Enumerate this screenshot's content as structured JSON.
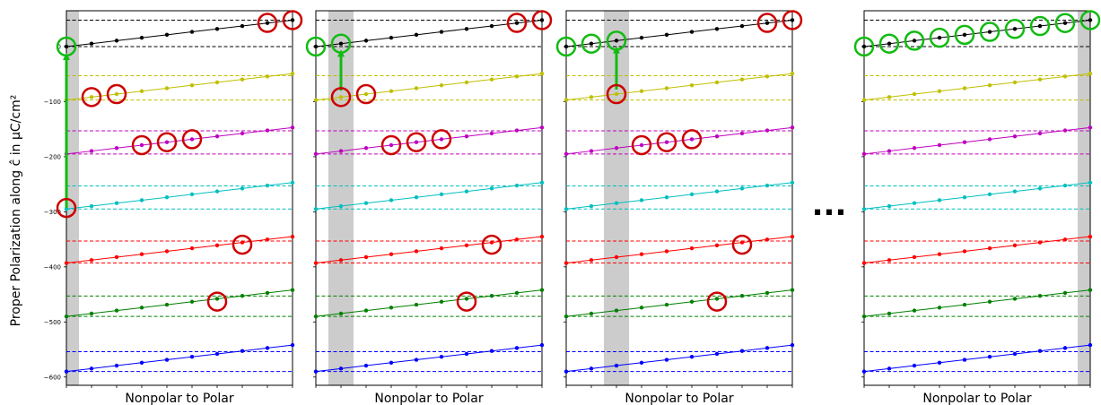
{
  "chart_data": {
    "type": "line",
    "ylabel": "Proper Polarization along ĉ in μC/cm²",
    "xlabel": "Nonpolar to Polar",
    "separator": "...",
    "ylim": [
      -615,
      65
    ],
    "yticks": [
      0,
      -100,
      -200,
      -300,
      -400,
      -500,
      -600
    ],
    "ytick_labels": [
      "0",
      "−100",
      "−200",
      "−300",
      "−400",
      "−500",
      "−600"
    ],
    "x": [
      0,
      1,
      2,
      3,
      4,
      5,
      6,
      7,
      8,
      9
    ],
    "colors": {
      "black": "#000000",
      "yellow": "#bfbf00",
      "magenta": "#bf00bf",
      "cyan": "#00bfbf",
      "red": "#ff0000",
      "green": "#008000",
      "blue": "#0000ff",
      "circle_red": "#cc0000",
      "circle_green": "#11bb11",
      "highlight": "#cccccc"
    },
    "series": [
      {
        "color": "black",
        "values": [
          0,
          5.3,
          10.7,
          16,
          21.3,
          26.7,
          32,
          37.3,
          42.7,
          48
        ],
        "dashes": [
          0,
          48
        ]
      },
      {
        "color": "yellow",
        "values": [
          -97,
          -91.7,
          -86.3,
          -81,
          -75.7,
          -70.3,
          -65,
          -59.7,
          -54.3,
          -49
        ],
        "dashes": [
          -97,
          -53
        ]
      },
      {
        "color": "magenta",
        "values": [
          -195,
          -189.7,
          -184.3,
          -179,
          -173.7,
          -168.3,
          -163,
          -157.7,
          -152.3,
          -147
        ],
        "dashes": [
          -195,
          -153
        ]
      },
      {
        "color": "cyan",
        "values": [
          -295,
          -289.7,
          -284.3,
          -279,
          -273.7,
          -268.3,
          -263,
          -257.7,
          -252.3,
          -247
        ],
        "dashes": [
          -295,
          -253
        ]
      },
      {
        "color": "red",
        "values": [
          -393,
          -387.7,
          -382.3,
          -377,
          -371.7,
          -366.3,
          -361,
          -355.7,
          -350.3,
          -345
        ],
        "dashes": [
          -393,
          -353
        ]
      },
      {
        "color": "green",
        "values": [
          -490,
          -484.7,
          -479.3,
          -474,
          -468.7,
          -463.3,
          -458,
          -452.7,
          -447.3,
          -442
        ],
        "dashes": [
          -490,
          -453
        ]
      },
      {
        "color": "blue",
        "values": [
          -590,
          -584.7,
          -579.3,
          -574,
          -568.7,
          -563.3,
          -558,
          -552.7,
          -547.3,
          -542
        ],
        "dashes": [
          -590,
          -554
        ]
      }
    ],
    "panels": [
      {
        "highlight_x": 0,
        "red_circles": [
          [
            8,
            43
          ],
          [
            9,
            48
          ],
          [
            1,
            -91.7
          ],
          [
            2,
            -86.3
          ],
          [
            3,
            -179
          ],
          [
            4,
            -173.7
          ],
          [
            5,
            -168.3
          ],
          [
            7,
            -359.7
          ],
          [
            6,
            -463
          ]
        ],
        "green_circles": [
          [
            0,
            0
          ]
        ],
        "arrow": {
          "x": 0,
          "from": -293,
          "to": -18
        },
        "red_circle_at_arrow_start": [
          0,
          -293
        ]
      },
      {
        "highlight_x": 1,
        "red_circles": [
          [
            8,
            43
          ],
          [
            9,
            48
          ],
          [
            1,
            -91.7
          ],
          [
            2,
            -86.3
          ],
          [
            3,
            -179
          ],
          [
            4,
            -173.7
          ],
          [
            5,
            -168.3
          ],
          [
            7,
            -359.7
          ],
          [
            6,
            -463
          ]
        ],
        "green_circles": [
          [
            0,
            0
          ],
          [
            1,
            5.3
          ]
        ],
        "arrow": {
          "x": 1,
          "from": -80,
          "to": -12
        }
      },
      {
        "highlight_x": 2,
        "red_circles": [
          [
            8,
            43
          ],
          [
            9,
            48
          ],
          [
            2,
            -86.3
          ],
          [
            3,
            -179
          ],
          [
            4,
            -173.7
          ],
          [
            5,
            -168.3
          ],
          [
            7,
            -359.7
          ],
          [
            6,
            -463
          ]
        ],
        "green_circles": [
          [
            0,
            0
          ],
          [
            1,
            5.3
          ],
          [
            2,
            10.7
          ]
        ],
        "arrow": {
          "x": 2,
          "from": -78,
          "to": -6
        }
      },
      {
        "highlight_x": 9,
        "red_circles": [],
        "green_circles": [
          [
            0,
            0
          ],
          [
            1,
            5.3
          ],
          [
            2,
            10.7
          ],
          [
            3,
            16
          ],
          [
            4,
            21.3
          ],
          [
            5,
            26.7
          ],
          [
            6,
            32
          ],
          [
            7,
            37.3
          ],
          [
            8,
            42.7
          ],
          [
            9,
            48
          ]
        ],
        "arrow": null
      }
    ]
  }
}
